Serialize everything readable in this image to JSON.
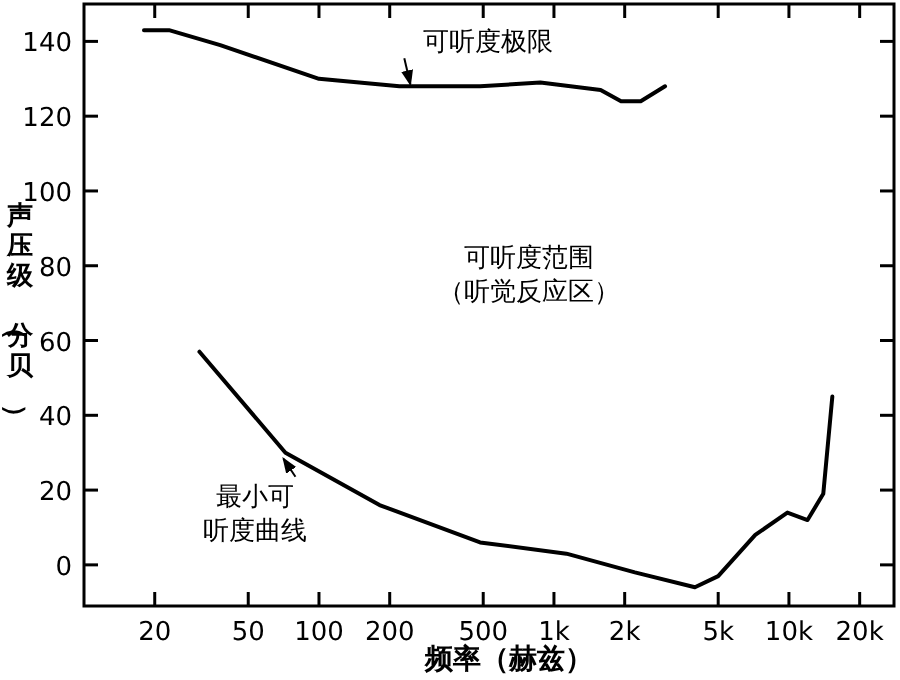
{
  "chart_data": {
    "type": "line",
    "xlabel": "频率（赫兹）",
    "ylabel": "声压级（分贝）",
    "log": "x",
    "xlim": [
      10,
      28000
    ],
    "ylim": [
      -11,
      150
    ],
    "xticks": [
      20,
      50,
      100,
      200,
      500,
      {
        "value": 1000,
        "label": "1k"
      },
      {
        "value": 2000,
        "label": "2k"
      },
      {
        "value": 5000,
        "label": "5k"
      },
      {
        "value": 10000,
        "label": "10k"
      },
      {
        "value": 20000,
        "label": "20k"
      }
    ],
    "yticks": [
      0,
      20,
      40,
      60,
      80,
      100,
      120,
      140
    ],
    "series": [
      {
        "color": "#000000",
        "x": [
          18,
          23,
          38,
          100,
          220,
          485,
          875,
          1580,
          1930,
          2340,
          2970
        ],
        "values": [
          143,
          143,
          139,
          130,
          128,
          128,
          129,
          127,
          124,
          124,
          128
        ]
      },
      {
        "color": "#000000",
        "x": [
          31,
          72,
          181,
          485,
          1130,
          2210,
          3980,
          5000,
          7190,
          9850,
          12000,
          14000,
          15300
        ],
        "values": [
          57,
          30,
          16,
          6,
          3,
          -2,
          -6,
          -3,
          8,
          14,
          12,
          19,
          45
        ]
      }
    ],
    "annotations": [
      {
        "text": "可听度极限",
        "x": 240,
        "y": 128
      },
      "可听度范围（听觉反应区）",
      {
        "text": "最小可听度曲线",
        "x": 72,
        "y": 30
      }
    ]
  }
}
